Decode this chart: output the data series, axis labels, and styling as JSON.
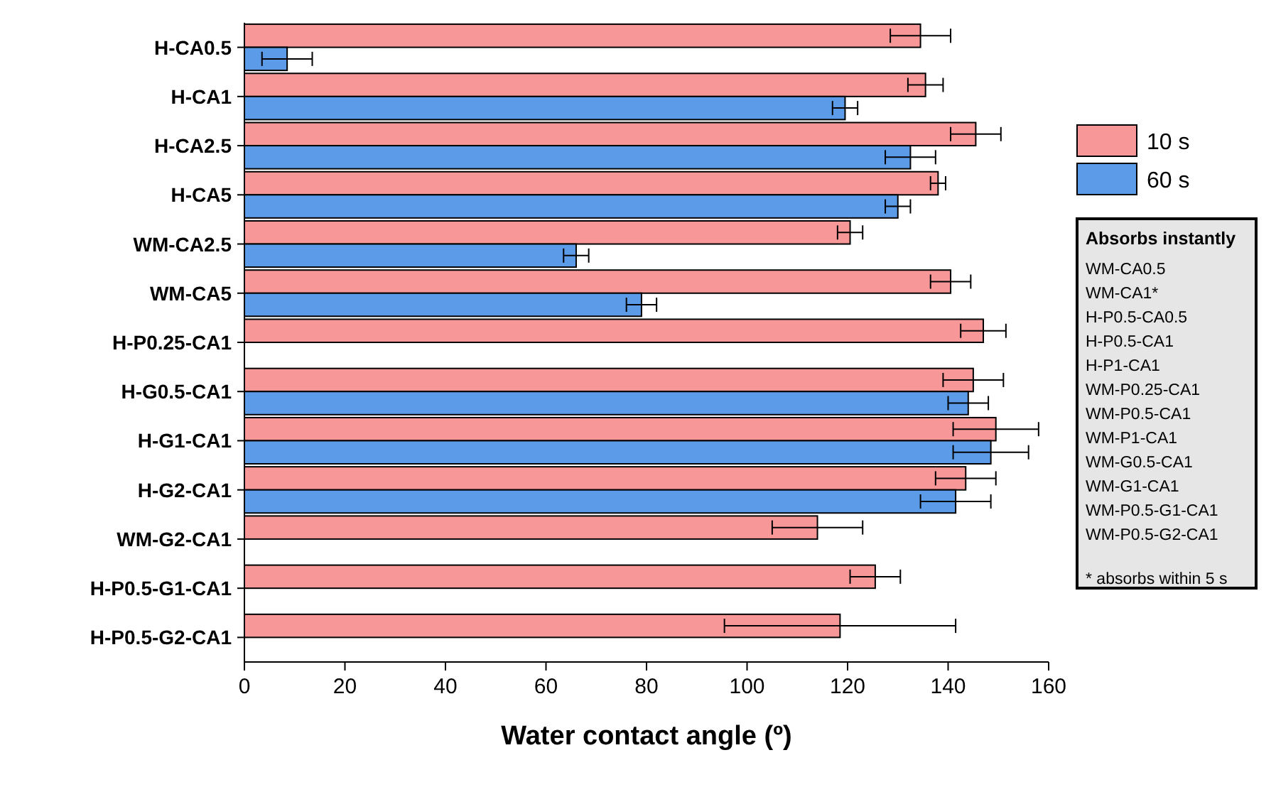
{
  "chart_data": {
    "type": "bar",
    "orientation": "horizontal",
    "xlabel": "Water contact angle (º)",
    "categories": [
      "H-CA0.5",
      "H-CA1",
      "H-CA2.5",
      "H-CA5",
      "WM-CA2.5",
      "WM-CA5",
      "H-P0.25-CA1",
      "H-G0.5-CA1",
      "H-G1-CA1",
      "H-G2-CA1",
      "WM-G2-CA1",
      "H-P0.5-G1-CA1",
      "H-P0.5-G2-CA1"
    ],
    "series": [
      {
        "name": "10 s",
        "color": "#f79797",
        "values": [
          134.5,
          135.5,
          145.5,
          138,
          120.5,
          140.5,
          147,
          145,
          149.5,
          143.5,
          114,
          125.5,
          118.5
        ],
        "errors": [
          6,
          3.5,
          5,
          1.5,
          2.5,
          4,
          4.5,
          6,
          8.5,
          6,
          9,
          5,
          23
        ]
      },
      {
        "name": "60 s",
        "color": "#5b9be8",
        "values": [
          8.5,
          119.5,
          132.5,
          130,
          66,
          79,
          null,
          144,
          148.5,
          141.5,
          null,
          null,
          null
        ],
        "errors": [
          5,
          2.5,
          5,
          2.5,
          2.5,
          3,
          null,
          4,
          7.5,
          7,
          null,
          null,
          null
        ]
      }
    ],
    "xlim": [
      0,
      160
    ],
    "xticks": [
      0,
      20,
      40,
      60,
      80,
      100,
      120,
      140,
      160
    ],
    "legend": "right",
    "annotations": [
      "Absorbs instantly",
      "WM-CA0.5",
      "WM-CA1*",
      "H-P0.5-CA0.5",
      "H-P0.5-CA1",
      "H-P1-CA1",
      "WM-P0.25-CA1",
      "WM-P0.5-CA1",
      "WM-P1-CA1",
      "WM-G0.5-CA1",
      "WM-G1-CA1",
      "WM-P0.5-G1-CA1",
      "WM-P0.5-G2-CA1",
      "* absorbs within 5 s"
    ]
  }
}
